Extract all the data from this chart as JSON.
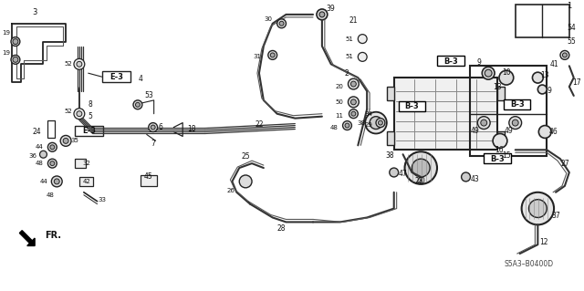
{
  "bg_color": "#ffffff",
  "line_color": "#222222",
  "figsize": [
    6.4,
    3.19
  ],
  "dpi": 100,
  "diagram_code": "S5A3–B0400D"
}
